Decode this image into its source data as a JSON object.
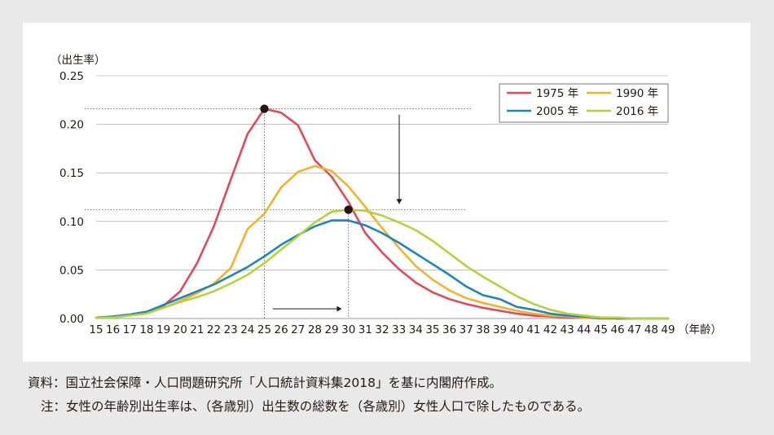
{
  "chart_data": {
    "type": "line",
    "ylabel": "（出生率）",
    "xlabel": "（年齢）",
    "x": [
      15,
      16,
      17,
      18,
      19,
      20,
      21,
      22,
      23,
      24,
      25,
      26,
      27,
      28,
      29,
      30,
      31,
      32,
      33,
      34,
      35,
      36,
      37,
      38,
      39,
      40,
      41,
      42,
      43,
      44,
      45,
      46,
      47,
      48,
      49
    ],
    "xlim": [
      15,
      49
    ],
    "ylim": [
      0,
      0.25
    ],
    "yticks": [
      "0.00",
      "0.05",
      "0.10",
      "0.15",
      "0.20",
      "0.25"
    ],
    "grid": "horizontal",
    "legend_position": "top-right",
    "series": [
      {
        "name": "1975 年",
        "color": "#e04a5a",
        "values": [
          0.001,
          0.002,
          0.004,
          0.007,
          0.013,
          0.028,
          0.057,
          0.095,
          0.143,
          0.19,
          0.216,
          0.212,
          0.199,
          0.163,
          0.146,
          0.12,
          0.088,
          0.068,
          0.051,
          0.037,
          0.027,
          0.02,
          0.015,
          0.011,
          0.008,
          0.005,
          0.003,
          0.002,
          0.001,
          0.001,
          0.0,
          0.0,
          0.0,
          0.0,
          0.0
        ]
      },
      {
        "name": "1990 年",
        "color": "#f4b12e",
        "values": [
          0.001,
          0.002,
          0.003,
          0.006,
          0.011,
          0.018,
          0.026,
          0.036,
          0.052,
          0.092,
          0.108,
          0.135,
          0.151,
          0.157,
          0.152,
          0.136,
          0.115,
          0.093,
          0.073,
          0.054,
          0.04,
          0.029,
          0.021,
          0.016,
          0.012,
          0.008,
          0.005,
          0.003,
          0.002,
          0.001,
          0.001,
          0.0,
          0.0,
          0.0,
          0.0
        ]
      },
      {
        "name": "2005 年",
        "color": "#1f85bf",
        "values": [
          0.001,
          0.002,
          0.004,
          0.007,
          0.014,
          0.021,
          0.028,
          0.035,
          0.044,
          0.053,
          0.064,
          0.076,
          0.086,
          0.095,
          0.101,
          0.101,
          0.096,
          0.088,
          0.078,
          0.067,
          0.056,
          0.045,
          0.033,
          0.024,
          0.02,
          0.012,
          0.009,
          0.005,
          0.003,
          0.002,
          0.001,
          0.0,
          0.0,
          0.0,
          0.0
        ]
      },
      {
        "name": "2016 年",
        "color": "#b2d33a",
        "values": [
          0.001,
          0.001,
          0.003,
          0.005,
          0.011,
          0.017,
          0.022,
          0.028,
          0.036,
          0.045,
          0.057,
          0.071,
          0.085,
          0.099,
          0.11,
          0.112,
          0.111,
          0.106,
          0.099,
          0.091,
          0.08,
          0.067,
          0.054,
          0.043,
          0.033,
          0.023,
          0.015,
          0.009,
          0.005,
          0.003,
          0.001,
          0.001,
          0.0,
          0.0,
          0.0
        ]
      }
    ],
    "highlights": [
      {
        "series": "1975 年",
        "x": 25,
        "y": 0.216
      },
      {
        "series": "2016 年",
        "x": 30,
        "y": 0.112
      }
    ]
  },
  "notes": {
    "source": "資料：国立社会保障・人口問題研究所「人口統計資料集2018」を基に内閣府作成。",
    "note": "注：女性の年齢別出生率は、（各歳別）出生数の総数を（各歳別）女性人口で除したものである。"
  },
  "colors": {
    "background": "#e9e9e9",
    "panel": "#ffffff",
    "grid": "#9a9a9a",
    "marker": "#231815"
  }
}
